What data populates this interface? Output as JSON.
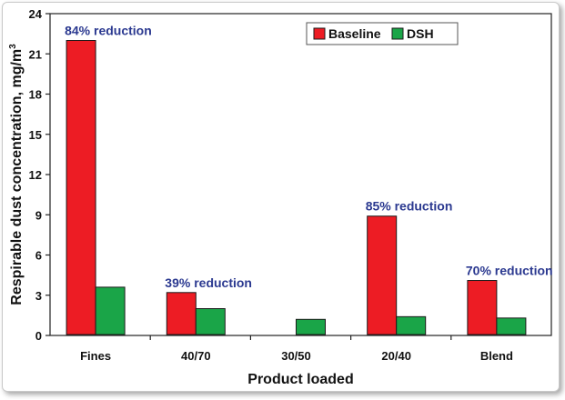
{
  "chart_data": {
    "type": "bar",
    "xlabel": "Product loaded",
    "ylabel": "Respirable dust concentration, mg/m",
    "ylabel_superscript": "3",
    "ylim": [
      0,
      24
    ],
    "yticks": [
      "0",
      "3",
      "6",
      "9",
      "12",
      "15",
      "18",
      "21",
      "24"
    ],
    "categories": [
      "Fines",
      "40/70",
      "30/50",
      "20/40",
      "Blend"
    ],
    "series": [
      {
        "name": "Baseline",
        "color": "#ed1c24",
        "values": [
          22.0,
          3.2,
          null,
          8.9,
          4.1
        ]
      },
      {
        "name": "DSH",
        "color": "#1aa548",
        "values": [
          3.6,
          2.0,
          1.2,
          1.4,
          1.3
        ]
      }
    ],
    "annotations": [
      "84% reduction",
      "39% reduction",
      "",
      "85% reduction",
      "70% reduction"
    ],
    "legend_position": "top-right",
    "grid": false
  }
}
